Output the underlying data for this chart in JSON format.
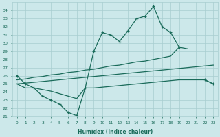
{
  "xlabel": "Humidex (Indice chaleur)",
  "x": [
    0,
    1,
    2,
    3,
    4,
    5,
    6,
    7,
    8,
    9,
    10,
    11,
    12,
    13,
    14,
    15,
    16,
    17,
    18,
    19,
    20,
    21,
    22,
    23
  ],
  "line_main": [
    26.0,
    25.0,
    24.5,
    23.5,
    23.0,
    22.5,
    21.5,
    21.1,
    24.5,
    29.0,
    31.3,
    31.0,
    30.2,
    31.5,
    33.0,
    33.3,
    34.5,
    32.0,
    31.3,
    29.5,
    null,
    null,
    25.5,
    25.0
  ],
  "line_upper": [
    25.5,
    25.6,
    25.8,
    25.9,
    26.1,
    26.2,
    26.4,
    26.5,
    26.7,
    26.8,
    27.0,
    27.2,
    27.3,
    27.5,
    27.7,
    27.8,
    28.0,
    28.2,
    28.4,
    29.5,
    29.3,
    null,
    null,
    25.0
  ],
  "line_middle": [
    25.0,
    25.1,
    25.2,
    25.3,
    25.4,
    25.5,
    25.6,
    25.7,
    25.8,
    25.9,
    26.0,
    26.1,
    26.2,
    26.3,
    26.4,
    26.5,
    26.6,
    26.7,
    26.8,
    26.9,
    27.0,
    27.1,
    27.2,
    27.3
  ],
  "line_lower": [
    25.0,
    24.5,
    24.5,
    24.3,
    24.1,
    23.8,
    23.5,
    23.2,
    24.5,
    24.5,
    24.6,
    24.7,
    24.8,
    24.9,
    25.0,
    25.1,
    25.2,
    25.3,
    25.4,
    25.5,
    25.5,
    25.5,
    25.5,
    25.0
  ],
  "line_color": "#1a6b5a",
  "bg_color": "#cce8ea",
  "grid_color": "#a8cdd0",
  "ylim": [
    21,
    35
  ],
  "xlim": [
    -0.5,
    23.5
  ],
  "yticks": [
    21,
    22,
    23,
    24,
    25,
    26,
    27,
    28,
    29,
    30,
    31,
    32,
    33,
    34
  ],
  "xticks": [
    0,
    1,
    2,
    3,
    4,
    5,
    6,
    7,
    8,
    9,
    10,
    11,
    12,
    13,
    14,
    15,
    16,
    17,
    18,
    19,
    20,
    21,
    22,
    23
  ]
}
